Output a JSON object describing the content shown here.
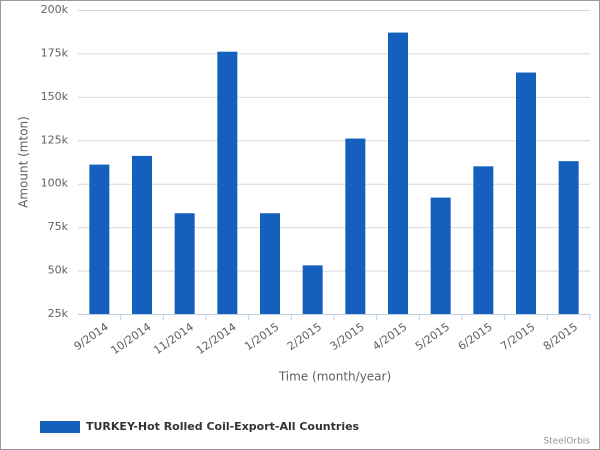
{
  "chart_data": {
    "type": "bar",
    "xlabel": "Time (month/year)",
    "ylabel": "Amount (mton)",
    "categories": [
      "9/2014",
      "10/2014",
      "11/2014",
      "12/2014",
      "1/2015",
      "2/2015",
      "3/2015",
      "4/2015",
      "5/2015",
      "6/2015",
      "7/2015",
      "8/2015"
    ],
    "series": [
      {
        "name": "TURKEY-Hot Rolled Coil-Export-All Countries",
        "color": "#1560bd",
        "values": [
          111000,
          116000,
          83000,
          176000,
          83000,
          53000,
          126000,
          187000,
          92000,
          110000,
          164000,
          113000
        ]
      }
    ],
    "ylim": [
      25000,
      200000
    ],
    "yticks": [
      {
        "value": 25000,
        "label": "25k"
      },
      {
        "value": 50000,
        "label": "50k"
      },
      {
        "value": 75000,
        "label": "75k"
      },
      {
        "value": 100000,
        "label": "100k"
      },
      {
        "value": 125000,
        "label": "125k"
      },
      {
        "value": 150000,
        "label": "150k"
      },
      {
        "value": 175000,
        "label": "175k"
      },
      {
        "value": 200000,
        "label": "200k"
      }
    ],
    "grid": true,
    "legend": "bottom-left",
    "credit": "SteelOrbis"
  }
}
